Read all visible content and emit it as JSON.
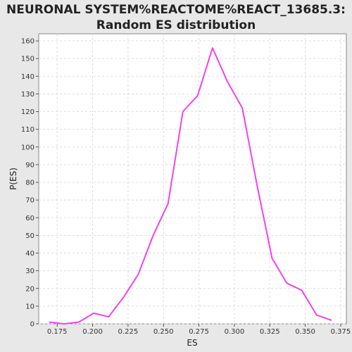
{
  "chart_data": {
    "type": "line",
    "title_lines": [
      "NEURONAL SYSTEM%REACTOME%REACT_13685.3:",
      "Random ES distribution"
    ],
    "xlabel": "ES",
    "ylabel": "P(ES)",
    "xlim": [
      0.162,
      0.379
    ],
    "ylim": [
      0,
      164
    ],
    "x_ticks": [
      0.175,
      0.2,
      0.225,
      0.25,
      0.275,
      0.3,
      0.325,
      0.35,
      0.375
    ],
    "x_tick_labels": [
      "0.175",
      "0.200",
      "0.225",
      "0.250",
      "0.275",
      "0.300",
      "0.325",
      "0.350",
      "0.375"
    ],
    "y_ticks": [
      0,
      10,
      20,
      30,
      40,
      50,
      60,
      70,
      80,
      90,
      100,
      110,
      120,
      130,
      140,
      150,
      160
    ],
    "y_tick_labels": [
      "0",
      "10",
      "20",
      "30",
      "40",
      "50",
      "60",
      "70",
      "80",
      "90",
      "100",
      "110",
      "120",
      "130",
      "140",
      "150",
      "160"
    ],
    "grid": true,
    "series": [
      {
        "color": "#ee44ee",
        "x": [
          0.1694,
          0.1799,
          0.1903,
          0.2008,
          0.2113,
          0.2218,
          0.2322,
          0.2427,
          0.2532,
          0.2637,
          0.2741,
          0.2846,
          0.2951,
          0.3056,
          0.3161,
          0.3266,
          0.337,
          0.3475,
          0.358,
          0.3685
        ],
        "y": [
          1,
          0,
          1,
          6,
          4,
          15,
          28,
          50,
          68,
          120,
          129,
          156,
          137,
          122,
          78,
          37,
          23,
          19,
          5,
          2
        ]
      }
    ]
  }
}
